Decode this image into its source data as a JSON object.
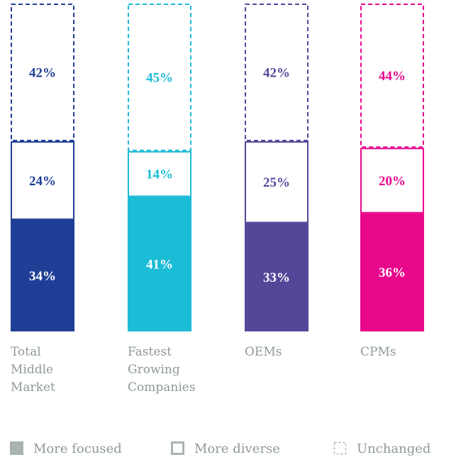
{
  "chart_data": {
    "type": "stacked-bar",
    "categories": [
      "Total Middle Market",
      "Fastest Growing Companies",
      "OEMs",
      "CPMs"
    ],
    "category_colors": [
      "#1f3f96",
      "#1bbcd6",
      "#54479a",
      "#e8078b"
    ],
    "series": [
      {
        "name": "More focused",
        "color": "#a9b4ae",
        "style": "solid",
        "values": [
          34,
          41,
          33,
          36
        ],
        "value_labels": [
          "34%",
          "41%",
          "33%",
          "36%"
        ]
      },
      {
        "name": "More diverse",
        "color": "#a9b4ae",
        "style": "outline",
        "values": [
          24,
          14,
          25,
          20
        ],
        "value_labels": [
          "24%",
          "14%",
          "25%",
          "20%"
        ]
      },
      {
        "name": "Unchanged",
        "color": "#a9b4ae",
        "style": "dashed",
        "values": [
          42,
          45,
          42,
          44
        ],
        "value_labels": [
          "42%",
          "45%",
          "42%",
          "44%"
        ]
      }
    ]
  }
}
